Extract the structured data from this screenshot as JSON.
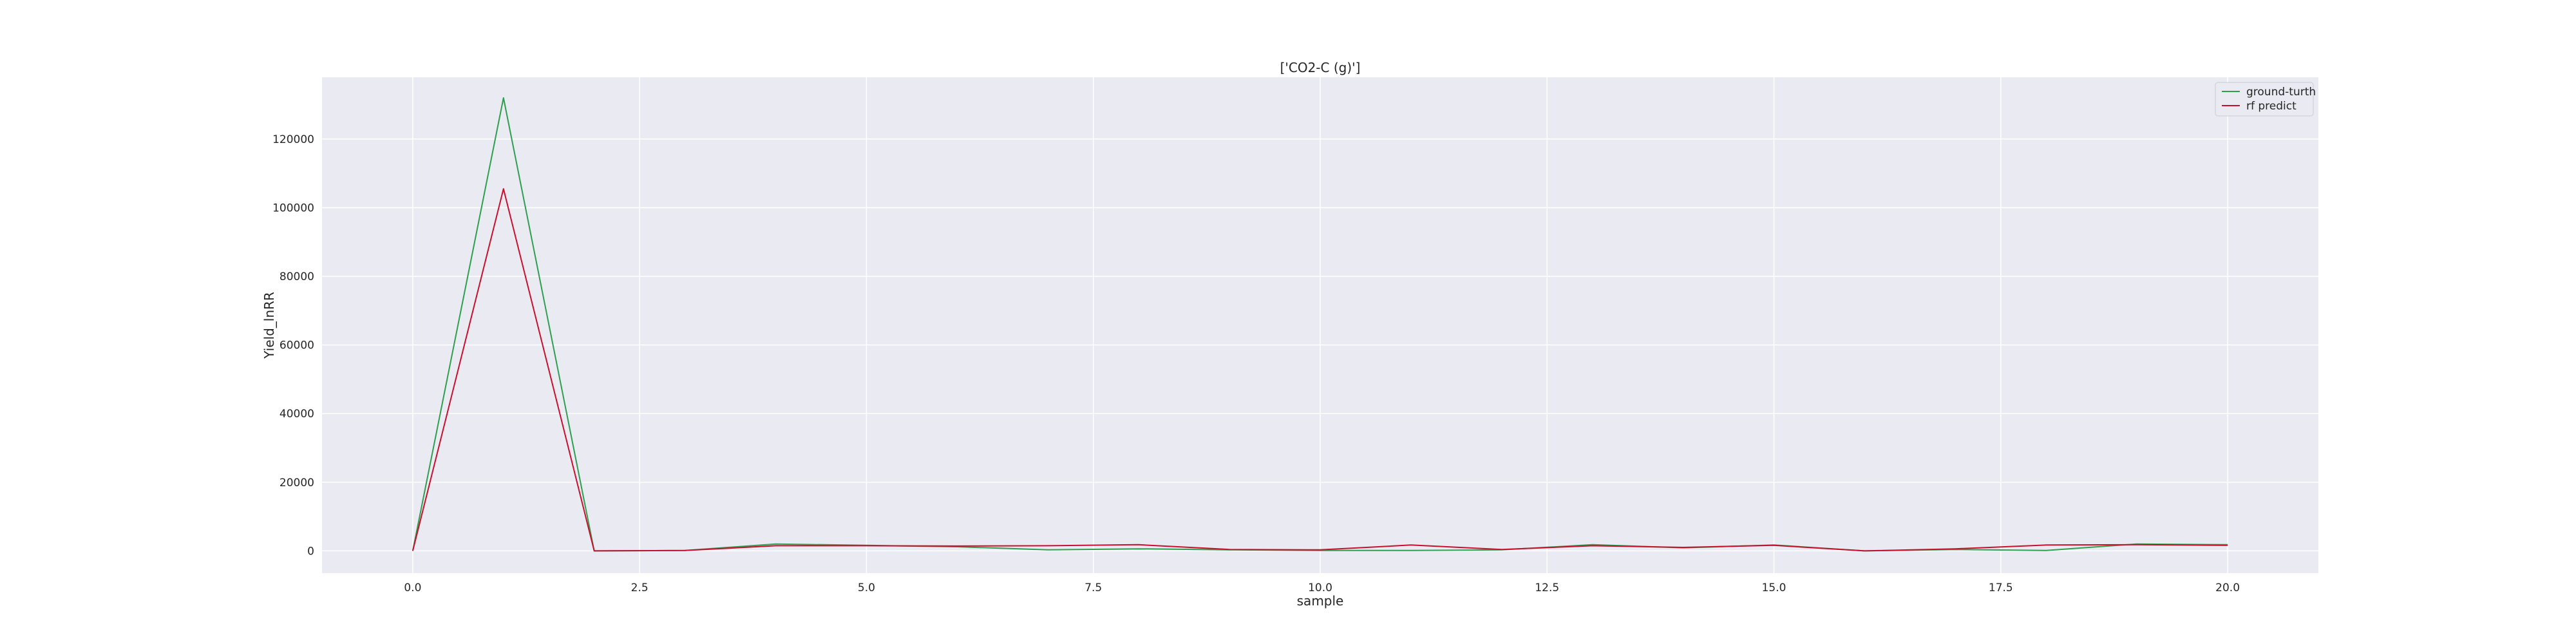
{
  "chart_data": {
    "type": "line",
    "title": "['CO2-C (g)']",
    "xlabel": "sample",
    "ylabel": "Yield_lnRR",
    "xlim": [
      -1.0,
      21.0
    ],
    "ylim": [
      -6500,
      138000
    ],
    "x_ticks": [
      0.0,
      2.5,
      5.0,
      7.5,
      10.0,
      12.5,
      15.0,
      17.5,
      20.0
    ],
    "x_tick_labels": [
      "0.0",
      "2.5",
      "5.0",
      "7.5",
      "10.0",
      "12.5",
      "15.0",
      "17.5",
      "20.0"
    ],
    "y_ticks": [
      0,
      20000,
      40000,
      60000,
      80000,
      100000,
      120000
    ],
    "y_tick_labels": [
      "0",
      "20000",
      "40000",
      "60000",
      "80000",
      "100000",
      "120000"
    ],
    "grid": true,
    "legend_position": "top-right",
    "x": [
      0,
      1,
      2,
      3,
      4,
      5,
      6,
      7,
      8,
      9,
      10,
      11,
      12,
      13,
      14,
      15,
      16,
      17,
      18,
      19,
      20
    ],
    "series": [
      {
        "name": "ground-turth",
        "color": "#2e9e4f",
        "values": [
          0,
          132000,
          0,
          100,
          2000,
          1600,
          1200,
          300,
          600,
          300,
          100,
          100,
          300,
          1800,
          900,
          1700,
          0,
          400,
          100,
          2000,
          1800
        ]
      },
      {
        "name": "rf predict",
        "color": "#c8102e",
        "values": [
          0,
          105500,
          0,
          100,
          1500,
          1500,
          1400,
          1500,
          1800,
          400,
          300,
          1700,
          400,
          1500,
          1000,
          1600,
          0,
          600,
          1700,
          1800,
          1600
        ]
      }
    ]
  }
}
